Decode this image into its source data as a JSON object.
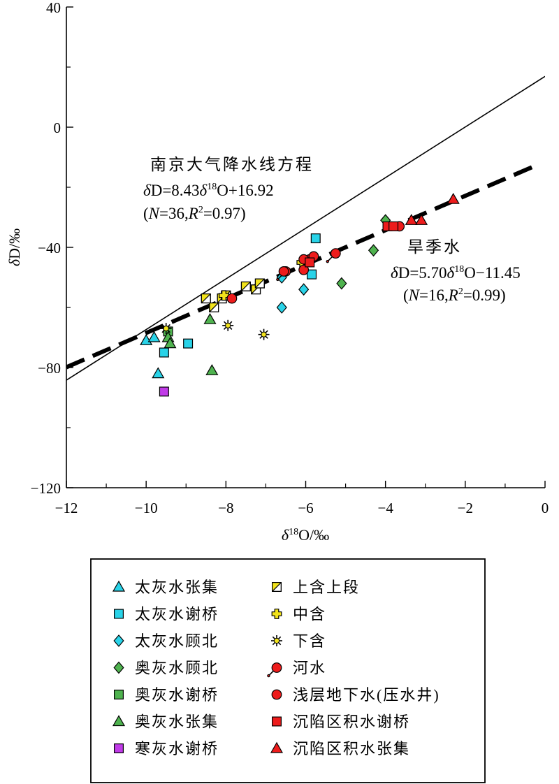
{
  "chart_data": {
    "type": "scatter",
    "xlabel": "δ18O/‰",
    "ylabel": "δD/‰",
    "xlim": [
      -12,
      0
    ],
    "ylim": [
      -120,
      40
    ],
    "xticks": [
      -12,
      -10,
      -8,
      -6,
      -4,
      -2,
      0
    ],
    "xtick_labels": [
      "−12",
      "−10",
      "−8",
      "−6",
      "−4",
      "−2",
      "0"
    ],
    "yticks": [
      -120,
      -80,
      -40,
      0,
      40
    ],
    "ytick_labels": [
      "−120",
      "−80",
      "−40",
      "0",
      "40"
    ],
    "lines": [
      {
        "name": "南京大气降水线",
        "style": "solid",
        "x": [
          -12,
          0
        ],
        "y": [
          -84.2,
          16.9
        ]
      },
      {
        "name": "旱季水线",
        "style": "dashed",
        "x": [
          -12,
          -0.2
        ],
        "y": [
          -79.9,
          -12.6
        ]
      }
    ],
    "annotations": [
      {
        "name": "lmwl",
        "lines": [
          "南京大气降水线方程",
          "δD=8.43δ18O+16.92",
          "(N=36,R2=0.97)"
        ]
      },
      {
        "name": "dry",
        "lines": [
          "旱季水",
          "δD=5.70δ18O−11.45",
          "(N=16,R2=0.99)"
        ]
      }
    ],
    "series": [
      {
        "name": "太灰水张集",
        "marker": "triangle",
        "color": "#29d3e8",
        "points": [
          [
            -10,
            -71
          ],
          [
            -9.8,
            -70
          ],
          [
            -9.7,
            -82
          ]
        ]
      },
      {
        "name": "太灰水谢桥",
        "marker": "square",
        "color": "#29d3e8",
        "points": [
          [
            -9.55,
            -75
          ],
          [
            -8.95,
            -72
          ],
          [
            -5.75,
            -37
          ],
          [
            -5.85,
            -49
          ]
        ]
      },
      {
        "name": "太灰水顾北",
        "marker": "diamond",
        "color": "#29d3e8",
        "points": [
          [
            -6.6,
            -50
          ],
          [
            -6.05,
            -54
          ],
          [
            -6.6,
            -60
          ]
        ]
      },
      {
        "name": "奥灰水顾北",
        "marker": "diamond",
        "color": "#4fb34f",
        "points": [
          [
            -5.1,
            -52
          ],
          [
            -4.3,
            -41
          ],
          [
            -4.0,
            -31
          ]
        ]
      },
      {
        "name": "奥灰水谢桥",
        "marker": "square",
        "color": "#4fb34f",
        "points": [
          [
            -9.45,
            -68
          ]
        ]
      },
      {
        "name": "奥灰水张集",
        "marker": "triangle",
        "color": "#4fb34f",
        "points": [
          [
            -9.45,
            -70
          ],
          [
            -9.4,
            -72
          ],
          [
            -8.4,
            -64
          ],
          [
            -8.35,
            -81
          ]
        ]
      },
      {
        "name": "寒灰水谢桥",
        "marker": "square",
        "color": "#c13be8",
        "points": [
          [
            -9.55,
            -88
          ]
        ]
      },
      {
        "name": "上含上段",
        "marker": "half-square",
        "color": "#f2e31b",
        "points": [
          [
            -8.5,
            -57
          ],
          [
            -8.3,
            -60
          ],
          [
            -8.1,
            -57
          ],
          [
            -8.0,
            -56
          ],
          [
            -7.5,
            -53
          ],
          [
            -7.25,
            -54
          ],
          [
            -7.15,
            -52
          ]
        ]
      },
      {
        "name": "中含",
        "marker": "cross",
        "color": "#f2e31b",
        "points": [
          [
            -8.05,
            -56
          ],
          [
            -6.1,
            -45
          ]
        ]
      },
      {
        "name": "下含",
        "marker": "star",
        "color": "#f2e31b",
        "points": [
          [
            -9.5,
            -67
          ],
          [
            -7.95,
            -66
          ],
          [
            -7.05,
            -69
          ]
        ]
      },
      {
        "name": "河水",
        "marker": "circle-tail",
        "color": "#ee1c1c",
        "points": [
          [
            -6.5,
            -48
          ],
          [
            -5.9,
            -44
          ],
          [
            -5.25,
            -42
          ]
        ]
      },
      {
        "name": "浅层地下水(压水井)",
        "marker": "circle",
        "color": "#ee1c1c",
        "points": [
          [
            -7.85,
            -57
          ],
          [
            -6.55,
            -48
          ],
          [
            -6.05,
            -44
          ],
          [
            -6.05,
            -47.5
          ],
          [
            -5.8,
            -43
          ],
          [
            -3.65,
            -33
          ]
        ]
      },
      {
        "name": "沉陷区积水谢桥",
        "marker": "square",
        "color": "#ee1c1c",
        "points": [
          [
            -5.9,
            -45
          ],
          [
            -3.95,
            -33
          ],
          [
            -3.8,
            -33
          ]
        ]
      },
      {
        "name": "沉陷区积水张集",
        "marker": "triangle",
        "color": "#ee1c1c",
        "points": [
          [
            -3.35,
            -31
          ],
          [
            -3.1,
            -31
          ],
          [
            -2.3,
            -24
          ]
        ]
      }
    ]
  }
}
